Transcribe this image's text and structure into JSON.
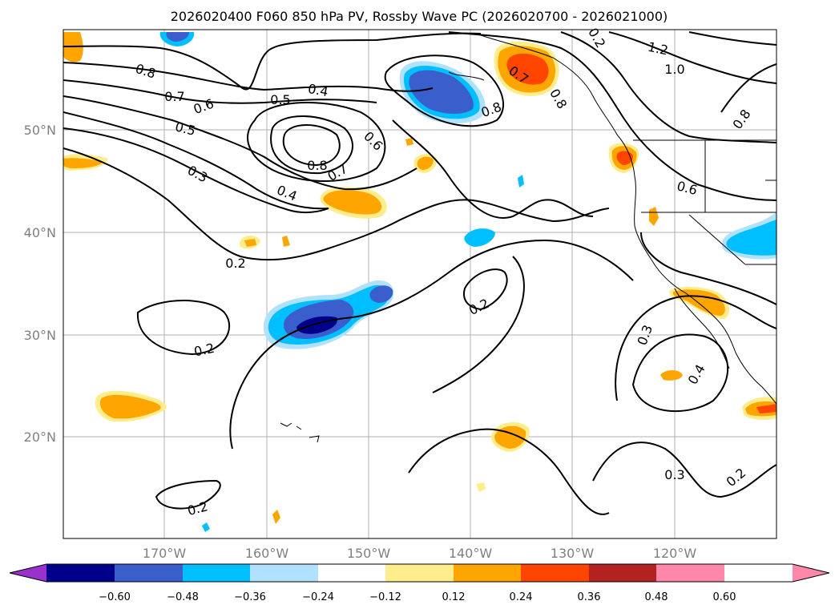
{
  "title": "2026020400 F060 850 hPa PV, Rossby Wave PC (2026020700 - 2026021000)",
  "map": {
    "lat_ticks": [
      "50°N",
      "40°N",
      "30°N",
      "20°N"
    ],
    "lon_ticks": [
      "170°W",
      "160°W",
      "150°W",
      "140°W",
      "130°W",
      "120°W"
    ]
  },
  "contour_labels": [
    "0.8",
    "0.7",
    "0.6",
    "0.5",
    "0.4",
    "0.3",
    "0.2",
    "0.5",
    "0.4",
    "0.8",
    "0.7",
    "0.6",
    "0.8",
    "0.7",
    "1.2",
    "1.0",
    "0.8",
    "0.6",
    "0.2",
    "0.2",
    "0.2",
    "0.3",
    "0.4",
    "0.3",
    "0.2",
    "0.2",
    "0.8"
  ],
  "colorbar": {
    "ticks": [
      "−0.60",
      "−0.48",
      "−0.36",
      "−0.24",
      "−0.12",
      "0.12",
      "0.24",
      "0.36",
      "0.48",
      "0.60"
    ],
    "colors": [
      "#9932cc",
      "#00008b",
      "#3a5fcd",
      "#00bfff",
      "#b0e2ff",
      "#ffffff",
      "#ffec8b",
      "#ffa500",
      "#ff4500",
      "#b22222",
      "#ff88aa"
    ]
  }
}
